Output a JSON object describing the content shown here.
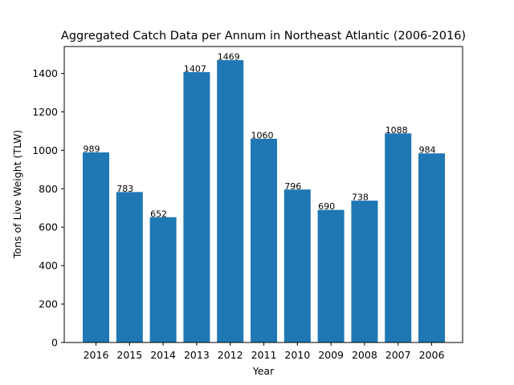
{
  "chart_data": {
    "type": "bar",
    "title": "Aggregated Catch Data per Annum in Northeast Atlantic (2006-2016)",
    "xlabel": "Year",
    "ylabel": "Tons of Live Weight (TLW)",
    "categories": [
      "2016",
      "2015",
      "2014",
      "2013",
      "2012",
      "2011",
      "2010",
      "2009",
      "2008",
      "2007",
      "2006"
    ],
    "values": [
      989,
      783,
      652,
      1407,
      1469,
      1060,
      796,
      690,
      738,
      1088,
      984
    ],
    "ylim": [
      0,
      1540
    ],
    "yticks": [
      0,
      200,
      400,
      600,
      800,
      1000,
      1200,
      1400
    ],
    "bar_color": "#1f77b4",
    "grid": false,
    "show_data_labels": true
  }
}
